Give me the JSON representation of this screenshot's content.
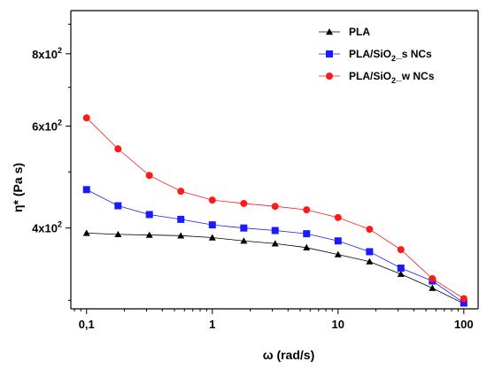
{
  "chart_data": {
    "type": "line",
    "title": "",
    "xlabel": "ω (rad/s)",
    "ylabel": "η* (Pa s)",
    "xscale": "log",
    "yscale": "log",
    "xlim": [
      0.075,
      130
    ],
    "ylim": [
      290,
      950
    ],
    "grid": false,
    "legend_position": "top-right",
    "x_ticks": [
      {
        "value": 0.1,
        "label": "0,1"
      },
      {
        "value": 1,
        "label": "1"
      },
      {
        "value": 10,
        "label": "10"
      },
      {
        "value": 100,
        "label": "100"
      }
    ],
    "y_ticks": [
      {
        "value": 400,
        "mantissa": "4x10",
        "exp": "2"
      },
      {
        "value": 600,
        "mantissa": "6x10",
        "exp": "2"
      },
      {
        "value": 800,
        "mantissa": "8x10",
        "exp": "2"
      }
    ],
    "x": [
      0.1,
      0.178,
      0.316,
      0.562,
      1.0,
      1.78,
      3.16,
      5.62,
      10.0,
      17.8,
      31.6,
      56.2,
      100.0
    ],
    "series": [
      {
        "name": "PLA",
        "marker": "triangle",
        "color": "#000000",
        "values": [
          392,
          390,
          389,
          388,
          385,
          380,
          376,
          370,
          360,
          350,
          333,
          315,
          296
        ]
      },
      {
        "name_main": "PLA/SiO",
        "name_sub": "2",
        "name_tail": "_s NCs",
        "marker": "square",
        "color": "#1a1aff",
        "values": [
          466,
          437,
          422,
          414,
          405,
          400,
          396,
          391,
          380,
          364,
          341,
          324,
          297
        ]
      },
      {
        "name_main": "PLA/SiO",
        "name_sub": "2",
        "name_tail": "_w NCs",
        "marker": "circle",
        "color": "#ff1a1a",
        "values": [
          620,
          548,
          493,
          463,
          447,
          441,
          436,
          430,
          417,
          398,
          367,
          327,
          302
        ]
      }
    ]
  }
}
